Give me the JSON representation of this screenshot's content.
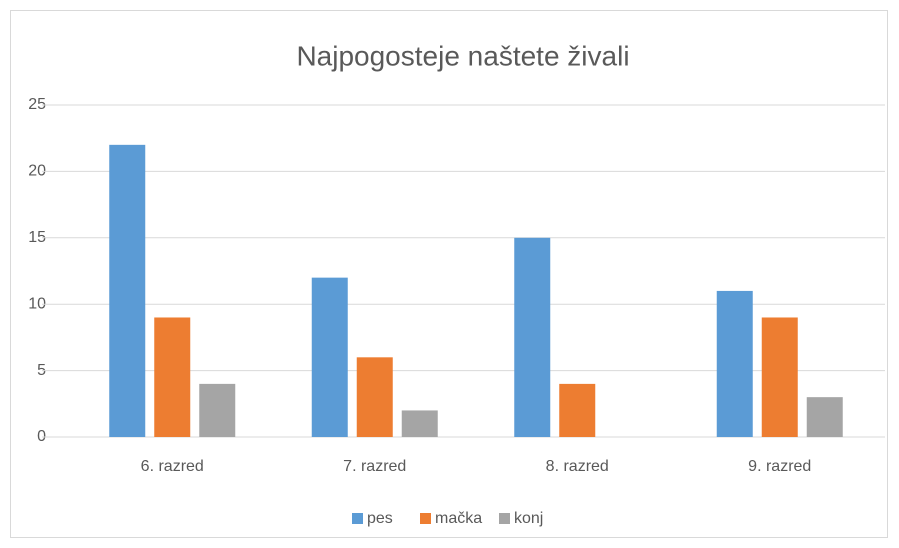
{
  "chart_data": {
    "type": "bar",
    "title": "Najpogosteje naštete živali",
    "categories": [
      "6. razred",
      "7. razred",
      "8. razred",
      "9. razred"
    ],
    "series": [
      {
        "name": "pes",
        "color": "#5b9bd5",
        "values": [
          22,
          12,
          15,
          11
        ]
      },
      {
        "name": "mačka",
        "color": "#ed7d31",
        "values": [
          9,
          6,
          4,
          9
        ]
      },
      {
        "name": "konj",
        "color": "#a5a5a5",
        "values": [
          4,
          2,
          0,
          3
        ]
      }
    ],
    "ylim": [
      0,
      25
    ],
    "yticks": [
      0,
      5,
      10,
      15,
      20,
      25
    ],
    "grid": true,
    "legend": "bottom"
  }
}
